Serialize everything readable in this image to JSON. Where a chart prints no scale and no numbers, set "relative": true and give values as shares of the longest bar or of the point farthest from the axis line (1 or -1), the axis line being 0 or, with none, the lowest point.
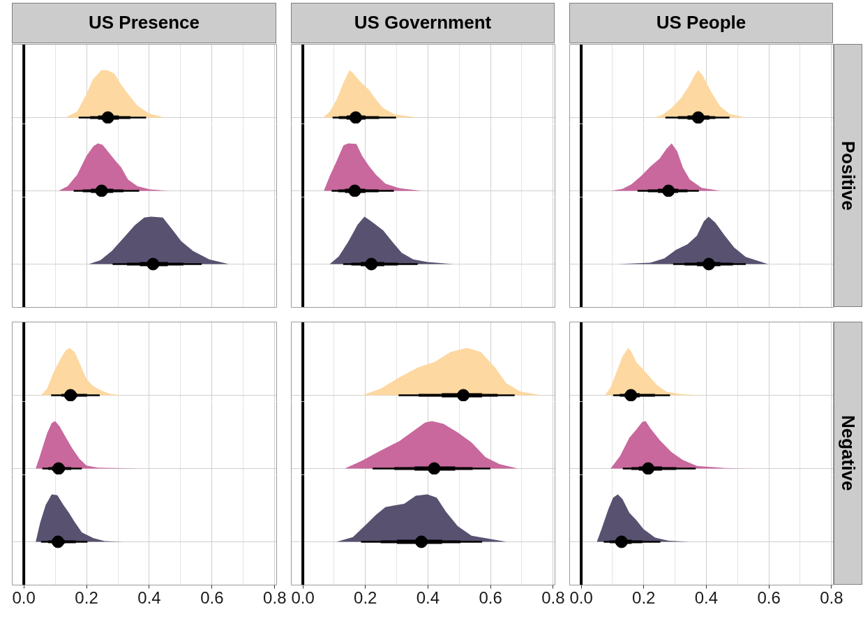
{
  "chart_data": [
    {
      "type": "area",
      "title": "US Presence",
      "relative": true,
      "xlim": [
        -0.037,
        0.806
      ],
      "xticks": [
        0,
        {
          "value": 0.1,
          "label": null
        },
        0.2,
        {
          "value": 0.3,
          "label": null
        },
        0.4,
        {
          "value": 0.5,
          "label": null
        },
        0.6,
        {
          "value": 0.7,
          "label": null
        },
        0.8
      ],
      "tick_labels": false,
      "grid": true,
      "ref_lines": [
        {
          "axis": "x",
          "value": 0,
          "color": "#000000"
        }
      ],
      "series": [
        {
          "color": "#fdd8a0",
          "x": [
            0.133,
            0.17,
            0.2,
            0.22,
            0.247,
            0.266,
            0.288,
            0.31,
            0.332,
            0.362,
            0.4,
            0.45
          ],
          "values": [
            0,
            0.13,
            0.5,
            0.8,
            1,
            1,
            0.93,
            0.7,
            0.5,
            0.25,
            0.083,
            0
          ]
        },
        {
          "type": "line",
          "color": "#000000",
          "x": [
            0.175,
            0.39
          ],
          "values": [
            0,
            0
          ]
        },
        {
          "type": "line",
          "color": "#000000",
          "x": [
            0.211,
            0.34
          ],
          "values": [
            0,
            0
          ]
        },
        {
          "type": "line",
          "color": "#000000",
          "x": [
            0.237,
            0.303
          ],
          "values": [
            0,
            0
          ]
        },
        {
          "type": "scatter",
          "marker": "circle",
          "color": "#000000",
          "x": [
            0.268
          ],
          "values": [
            0
          ]
        }
      ]
    },
    {
      "type": "area",
      "relative": true,
      "xlim": [
        -0.037,
        0.806
      ],
      "xticks": [
        0,
        {
          "value": 0.1,
          "label": null
        },
        0.2,
        {
          "value": 0.3,
          "label": null
        },
        0.4,
        {
          "value": 0.5,
          "label": null
        },
        0.6,
        {
          "value": 0.7,
          "label": null
        },
        0.8
      ],
      "tick_labels": false,
      "grid": true,
      "ref_lines": [
        {
          "axis": "x",
          "value": 0,
          "color": "#000000"
        }
      ],
      "series": [
        {
          "color": "#c8689c",
          "x": [
            0.111,
            0.14,
            0.17,
            0.2,
            0.222,
            0.236,
            0.251,
            0.273,
            0.295,
            0.31,
            0.332,
            0.362,
            0.4,
            0.46
          ],
          "values": [
            0,
            0.1,
            0.34,
            0.74,
            0.94,
            1,
            0.97,
            0.79,
            0.61,
            0.5,
            0.24,
            0.1,
            0.032,
            0
          ]
        },
        {
          "type": "line",
          "color": "#000000",
          "x": [
            0.159,
            0.368
          ],
          "values": [
            0,
            0
          ]
        },
        {
          "type": "line",
          "color": "#000000",
          "x": [
            0.188,
            0.318
          ],
          "values": [
            0,
            0
          ]
        },
        {
          "type": "line",
          "color": "#000000",
          "x": [
            0.214,
            0.285
          ],
          "values": [
            0,
            0
          ]
        },
        {
          "type": "scatter",
          "marker": "circle",
          "color": "#000000",
          "x": [
            0.248
          ],
          "values": [
            0
          ]
        }
      ]
    },
    {
      "type": "area",
      "relative": true,
      "xlim": [
        -0.037,
        0.806
      ],
      "xticks": [
        0,
        {
          "value": 0.1,
          "label": null
        },
        0.2,
        {
          "value": 0.3,
          "label": null
        },
        0.4,
        {
          "value": 0.5,
          "label": null
        },
        0.6,
        {
          "value": 0.7,
          "label": null
        },
        0.8
      ],
      "tick_labels": false,
      "grid": true,
      "ref_lines": [
        {
          "axis": "x",
          "value": 0,
          "color": "#000000"
        }
      ],
      "series": [
        {
          "color": "#585170",
          "x": [
            0.207,
            0.244,
            0.281,
            0.318,
            0.354,
            0.384,
            0.406,
            0.443,
            0.473,
            0.502,
            0.539,
            0.591,
            0.654
          ],
          "values": [
            0,
            0.082,
            0.28,
            0.55,
            0.82,
            0.98,
            1,
            0.98,
            0.73,
            0.48,
            0.28,
            0.1,
            0
          ]
        },
        {
          "type": "line",
          "color": "#000000",
          "x": [
            0.283,
            0.567
          ],
          "values": [
            0,
            0
          ]
        },
        {
          "type": "line",
          "color": "#000000",
          "x": [
            0.329,
            0.509
          ],
          "values": [
            0,
            0
          ]
        },
        {
          "type": "line",
          "color": "#000000",
          "x": [
            0.37,
            0.459
          ],
          "values": [
            0,
            0
          ]
        },
        {
          "type": "scatter",
          "marker": "circle",
          "color": "#000000",
          "x": [
            0.412
          ],
          "values": [
            0
          ]
        }
      ]
    },
    {
      "type": "area",
      "title": "US Government",
      "relative": true,
      "xlim": [
        -0.037,
        0.806
      ],
      "xticks": [
        0,
        {
          "value": 0.1,
          "label": null
        },
        0.2,
        {
          "value": 0.3,
          "label": null
        },
        0.4,
        {
          "value": 0.5,
          "label": null
        },
        0.6,
        {
          "value": 0.7,
          "label": null
        },
        0.8
      ],
      "tick_labels": false,
      "grid": true,
      "ref_lines": [
        {
          "axis": "x",
          "value": 0,
          "color": "#000000"
        }
      ],
      "series": [
        {
          "color": "#fdd8a0",
          "x": [
            0.065,
            0.086,
            0.108,
            0.13,
            0.149,
            0.16,
            0.182,
            0.212,
            0.234,
            0.257,
            0.294,
            0.368
          ],
          "values": [
            0,
            0.12,
            0.38,
            0.74,
            1,
            0.94,
            0.77,
            0.58,
            0.38,
            0.2,
            0.067,
            0
          ]
        },
        {
          "type": "line",
          "color": "#000000",
          "x": [
            0.095,
            0.298
          ],
          "values": [
            0,
            0
          ]
        },
        {
          "type": "line",
          "color": "#000000",
          "x": [
            0.115,
            0.244
          ],
          "values": [
            0,
            0
          ]
        },
        {
          "type": "line",
          "color": "#000000",
          "x": [
            0.14,
            0.2
          ],
          "values": [
            0,
            0
          ]
        },
        {
          "type": "scatter",
          "marker": "circle",
          "color": "#000000",
          "x": [
            0.169
          ],
          "values": [
            0
          ]
        }
      ]
    },
    {
      "type": "area",
      "relative": true,
      "xlim": [
        -0.037,
        0.806
      ],
      "xticks": [
        0,
        {
          "value": 0.1,
          "label": null
        },
        0.2,
        {
          "value": 0.3,
          "label": null
        },
        0.4,
        {
          "value": 0.5,
          "label": null
        },
        0.6,
        {
          "value": 0.7,
          "label": null
        },
        0.8
      ],
      "tick_labels": false,
      "grid": true,
      "ref_lines": [
        {
          "axis": "x",
          "value": 0,
          "color": "#000000"
        }
      ],
      "series": [
        {
          "color": "#c8689c",
          "x": [
            0.067,
            0.086,
            0.108,
            0.13,
            0.145,
            0.171,
            0.19,
            0.212,
            0.234,
            0.264,
            0.309,
            0.38
          ],
          "values": [
            0,
            0.31,
            0.63,
            0.96,
            1,
            0.99,
            0.73,
            0.52,
            0.34,
            0.15,
            0.054,
            0
          ]
        },
        {
          "type": "line",
          "color": "#000000",
          "x": [
            0.092,
            0.291
          ],
          "values": [
            0,
            0
          ]
        },
        {
          "type": "line",
          "color": "#000000",
          "x": [
            0.113,
            0.242
          ],
          "values": [
            0,
            0
          ]
        },
        {
          "type": "line",
          "color": "#000000",
          "x": [
            0.135,
            0.2
          ],
          "values": [
            0,
            0
          ]
        },
        {
          "type": "scatter",
          "marker": "circle",
          "color": "#000000",
          "x": [
            0.166
          ],
          "values": [
            0
          ]
        }
      ]
    },
    {
      "type": "area",
      "relative": true,
      "xlim": [
        -0.037,
        0.806
      ],
      "xticks": [
        0,
        {
          "value": 0.1,
          "label": null
        },
        0.2,
        {
          "value": 0.3,
          "label": null
        },
        0.4,
        {
          "value": 0.5,
          "label": null
        },
        0.6,
        {
          "value": 0.7,
          "label": null
        },
        0.8
      ],
      "tick_labels": false,
      "grid": true,
      "ref_lines": [
        {
          "axis": "x",
          "value": 0,
          "color": "#000000"
        }
      ],
      "series": [
        {
          "color": "#585170",
          "x": [
            0.086,
            0.115,
            0.145,
            0.175,
            0.197,
            0.219,
            0.257,
            0.286,
            0.316,
            0.353,
            0.398,
            0.48
          ],
          "values": [
            0,
            0.16,
            0.47,
            0.83,
            1,
            0.9,
            0.71,
            0.47,
            0.24,
            0.1,
            0.043,
            0
          ]
        },
        {
          "type": "line",
          "color": "#000000",
          "x": [
            0.129,
            0.367
          ],
          "values": [
            0,
            0
          ]
        },
        {
          "type": "line",
          "color": "#000000",
          "x": [
            0.155,
            0.304
          ],
          "values": [
            0,
            0
          ]
        },
        {
          "type": "line",
          "color": "#000000",
          "x": [
            0.185,
            0.26
          ],
          "values": [
            0,
            0
          ]
        },
        {
          "type": "scatter",
          "marker": "circle",
          "color": "#000000",
          "x": [
            0.219
          ],
          "values": [
            0
          ]
        }
      ]
    },
    {
      "type": "area",
      "title": "US People",
      "relative": true,
      "xlim": [
        -0.037,
        0.806
      ],
      "xticks": [
        0,
        {
          "value": 0.1,
          "label": null
        },
        0.2,
        {
          "value": 0.3,
          "label": null
        },
        0.4,
        {
          "value": 0.5,
          "label": null
        },
        0.6,
        {
          "value": 0.7,
          "label": null
        },
        0.8
      ],
      "tick_labels": false,
      "grid": true,
      "ref_lines": [
        {
          "axis": "x",
          "value": 0,
          "color": "#000000"
        }
      ],
      "series": [
        {
          "color": "#fdd8a0",
          "x": [
            0.232,
            0.258,
            0.288,
            0.318,
            0.344,
            0.362,
            0.374,
            0.388,
            0.414,
            0.444,
            0.474,
            0.526
          ],
          "values": [
            0,
            0.051,
            0.2,
            0.4,
            0.66,
            0.89,
            1,
            0.89,
            0.56,
            0.24,
            0.077,
            0
          ]
        },
        {
          "type": "line",
          "color": "#000000",
          "x": [
            0.269,
            0.474
          ],
          "values": [
            0,
            0
          ]
        },
        {
          "type": "line",
          "color": "#000000",
          "x": [
            0.309,
            0.429
          ],
          "values": [
            0,
            0
          ]
        },
        {
          "type": "line",
          "color": "#000000",
          "x": [
            0.34,
            0.41
          ],
          "values": [
            0,
            0
          ]
        },
        {
          "type": "scatter",
          "marker": "circle",
          "color": "#000000",
          "x": [
            0.374
          ],
          "values": [
            0
          ]
        }
      ]
    },
    {
      "type": "area",
      "y2label": "Positive",
      "relative": true,
      "xlim": [
        -0.037,
        0.806
      ],
      "xticks": [
        0,
        {
          "value": 0.1,
          "label": null
        },
        0.2,
        {
          "value": 0.3,
          "label": null
        },
        0.4,
        {
          "value": 0.5,
          "label": null
        },
        0.6,
        {
          "value": 0.7,
          "label": null
        },
        0.8
      ],
      "tick_labels": false,
      "grid": true,
      "ref_lines": [
        {
          "axis": "x",
          "value": 0,
          "color": "#000000"
        }
      ],
      "series": [
        {
          "color": "#c8689c",
          "x": [
            0.094,
            0.132,
            0.161,
            0.191,
            0.221,
            0.251,
            0.273,
            0.289,
            0.307,
            0.325,
            0.347,
            0.385,
            0.444
          ],
          "values": [
            0,
            0.042,
            0.14,
            0.31,
            0.51,
            0.68,
            0.89,
            1,
            0.83,
            0.49,
            0.24,
            0.064,
            0
          ]
        },
        {
          "type": "line",
          "color": "#000000",
          "x": [
            0.18,
            0.376
          ],
          "values": [
            0,
            0
          ]
        },
        {
          "type": "line",
          "color": "#000000",
          "x": [
            0.213,
            0.34
          ],
          "values": [
            0,
            0
          ]
        },
        {
          "type": "line",
          "color": "#000000",
          "x": [
            0.245,
            0.31
          ],
          "values": [
            0,
            0
          ]
        },
        {
          "type": "scatter",
          "marker": "circle",
          "color": "#000000",
          "x": [
            0.279
          ],
          "values": [
            0
          ]
        }
      ]
    },
    {
      "type": "area",
      "relative": true,
      "xlim": [
        -0.037,
        0.806
      ],
      "xticks": [
        0,
        {
          "value": 0.1,
          "label": null
        },
        0.2,
        {
          "value": 0.3,
          "label": null
        },
        0.4,
        {
          "value": 0.5,
          "label": null
        },
        0.6,
        {
          "value": 0.7,
          "label": null
        },
        0.8
      ],
      "tick_labels": false,
      "grid": true,
      "ref_lines": [
        {
          "axis": "x",
          "value": 0,
          "color": "#000000"
        }
      ],
      "series": [
        {
          "color": "#585170",
          "x": [
            0.117,
            0.221,
            0.266,
            0.303,
            0.34,
            0.37,
            0.392,
            0.407,
            0.429,
            0.459,
            0.489,
            0.526,
            0.597
          ],
          "values": [
            0,
            0.03,
            0.12,
            0.3,
            0.42,
            0.6,
            0.9,
            1,
            0.87,
            0.6,
            0.35,
            0.15,
            0
          ]
        },
        {
          "type": "line",
          "color": "#000000",
          "x": [
            0.294,
            0.526
          ],
          "values": [
            0,
            0
          ]
        },
        {
          "type": "line",
          "color": "#000000",
          "x": [
            0.33,
            0.485
          ],
          "values": [
            0,
            0
          ]
        },
        {
          "type": "line",
          "color": "#000000",
          "x": [
            0.37,
            0.445
          ],
          "values": [
            0,
            0
          ]
        },
        {
          "type": "scatter",
          "marker": "circle",
          "color": "#000000",
          "x": [
            0.408
          ],
          "values": [
            0
          ]
        }
      ]
    },
    {
      "type": "area",
      "relative": true,
      "xlim": [
        -0.037,
        0.806
      ],
      "xticks": [
        0,
        {
          "value": 0.1,
          "label": null
        },
        0.2,
        {
          "value": 0.3,
          "label": null
        },
        0.4,
        {
          "value": 0.5,
          "label": null
        },
        0.6,
        {
          "value": 0.7,
          "label": null
        },
        0.8
      ],
      "tick_labels": false,
      "grid": true,
      "ref_lines": [
        {
          "axis": "x",
          "value": 0,
          "color": "#000000"
        }
      ],
      "series": [
        {
          "color": "#fdd8a0",
          "x": [
            0.055,
            0.074,
            0.096,
            0.118,
            0.133,
            0.146,
            0.162,
            0.181,
            0.2,
            0.222,
            0.244,
            0.273,
            0.31
          ],
          "values": [
            0,
            0.14,
            0.5,
            0.78,
            0.94,
            1,
            0.91,
            0.63,
            0.34,
            0.19,
            0.11,
            0.034,
            0
          ]
        },
        {
          "type": "line",
          "color": "#000000",
          "x": [
            0.087,
            0.242
          ],
          "values": [
            0,
            0
          ]
        },
        {
          "type": "line",
          "color": "#000000",
          "x": [
            0.12,
            0.202
          ],
          "values": [
            0,
            0
          ]
        },
        {
          "type": "line",
          "color": "#000000",
          "x": [
            0.13,
            0.17
          ],
          "values": [
            0,
            0
          ]
        },
        {
          "type": "scatter",
          "marker": "circle",
          "color": "#000000",
          "x": [
            0.149
          ],
          "values": [
            0
          ]
        }
      ]
    },
    {
      "type": "area",
      "relative": true,
      "xlim": [
        -0.037,
        0.806
      ],
      "xticks": [
        0,
        {
          "value": 0.1,
          "label": null
        },
        0.2,
        {
          "value": 0.3,
          "label": null
        },
        0.4,
        {
          "value": 0.5,
          "label": null
        },
        0.6,
        {
          "value": 0.7,
          "label": null
        },
        0.8
      ],
      "tick_labels": false,
      "grid": true,
      "ref_lines": [
        {
          "axis": "x",
          "value": 0,
          "color": "#000000"
        }
      ],
      "series": [
        {
          "color": "#c8689c",
          "x": [
            0.038,
            0.052,
            0.074,
            0.089,
            0.1,
            0.114,
            0.133,
            0.155,
            0.177,
            0.2,
            0.236,
            0.369
          ],
          "values": [
            0,
            0.28,
            0.74,
            0.96,
            1,
            0.89,
            0.67,
            0.42,
            0.21,
            0.064,
            0.018,
            0
          ]
        },
        {
          "type": "line",
          "color": "#000000",
          "x": [
            0.059,
            0.185
          ],
          "values": [
            0,
            0
          ]
        },
        {
          "type": "line",
          "color": "#000000",
          "x": [
            0.078,
            0.151
          ],
          "values": [
            0,
            0
          ]
        },
        {
          "type": "line",
          "color": "#000000",
          "x": [
            0.09,
            0.13
          ],
          "values": [
            0,
            0
          ]
        },
        {
          "type": "scatter",
          "marker": "circle",
          "color": "#000000",
          "x": [
            0.111
          ],
          "values": [
            0
          ]
        }
      ]
    },
    {
      "type": "area",
      "relative": true,
      "xlim": [
        -0.037,
        0.806
      ],
      "xticks": [
        {
          "value": 0,
          "label": "0.0"
        },
        {
          "value": 0.1,
          "label": null
        },
        0.2,
        {
          "value": 0.3,
          "label": null
        },
        0.4,
        {
          "value": 0.5,
          "label": null
        },
        0.6,
        {
          "value": 0.7,
          "label": null
        },
        0.8
      ],
      "tick_labels": "x",
      "grid": true,
      "ref_lines": [
        {
          "axis": "x",
          "value": 0,
          "color": "#000000"
        }
      ],
      "series": [
        {
          "color": "#585170",
          "x": [
            0.038,
            0.052,
            0.07,
            0.089,
            0.107,
            0.126,
            0.144,
            0.162,
            0.185,
            0.222,
            0.258,
            0.318
          ],
          "values": [
            0,
            0.4,
            0.78,
            1,
            0.98,
            0.78,
            0.61,
            0.42,
            0.2,
            0.077,
            0.013,
            0
          ]
        },
        {
          "type": "line",
          "color": "#000000",
          "x": [
            0.055,
            0.203
          ],
          "values": [
            0,
            0
          ]
        },
        {
          "type": "line",
          "color": "#000000",
          "x": [
            0.078,
            0.166
          ],
          "values": [
            0,
            0
          ]
        },
        {
          "type": "line",
          "color": "#000000",
          "x": [
            0.09,
            0.13
          ],
          "values": [
            0,
            0
          ]
        },
        {
          "type": "scatter",
          "marker": "circle",
          "color": "#000000",
          "x": [
            0.109
          ],
          "values": [
            0
          ]
        }
      ]
    },
    {
      "type": "area",
      "relative": true,
      "xlim": [
        -0.037,
        0.806
      ],
      "xticks": [
        0,
        {
          "value": 0.1,
          "label": null
        },
        0.2,
        {
          "value": 0.3,
          "label": null
        },
        0.4,
        {
          "value": 0.5,
          "label": null
        },
        0.6,
        {
          "value": 0.7,
          "label": null
        },
        0.8
      ],
      "tick_labels": false,
      "grid": true,
      "ref_lines": [
        {
          "axis": "x",
          "value": 0,
          "color": "#000000"
        }
      ],
      "series": [
        {
          "color": "#fdd8a0",
          "x": [
            0.19,
            0.249,
            0.309,
            0.368,
            0.42,
            0.472,
            0.525,
            0.569,
            0.614,
            0.651,
            0.696,
            0.763
          ],
          "values": [
            0,
            0.14,
            0.38,
            0.59,
            0.7,
            0.91,
            1,
            0.91,
            0.59,
            0.25,
            0.078,
            0
          ]
        },
        {
          "type": "line",
          "color": "#000000",
          "x": [
            0.306,
            0.677
          ],
          "values": [
            0,
            0
          ]
        },
        {
          "type": "line",
          "color": "#000000",
          "x": [
            0.37,
            0.623
          ],
          "values": [
            0,
            0
          ]
        },
        {
          "type": "line",
          "color": "#000000",
          "x": [
            0.444,
            0.573
          ],
          "values": [
            0,
            0
          ]
        },
        {
          "type": "scatter",
          "marker": "circle",
          "color": "#000000",
          "x": [
            0.513
          ],
          "values": [
            0
          ]
        }
      ]
    },
    {
      "type": "area",
      "relative": true,
      "xlim": [
        -0.037,
        0.806
      ],
      "xticks": [
        0,
        {
          "value": 0.1,
          "label": null
        },
        0.2,
        {
          "value": 0.3,
          "label": null
        },
        0.4,
        {
          "value": 0.5,
          "label": null
        },
        0.6,
        {
          "value": 0.7,
          "label": null
        },
        0.8
      ],
      "tick_labels": false,
      "grid": true,
      "ref_lines": [
        {
          "axis": "x",
          "value": 0,
          "color": "#000000"
        }
      ],
      "series": [
        {
          "color": "#c8689c",
          "x": [
            0.134,
            0.19,
            0.249,
            0.309,
            0.353,
            0.391,
            0.413,
            0.45,
            0.495,
            0.539,
            0.584,
            0.629,
            0.688
          ],
          "values": [
            0,
            0.17,
            0.38,
            0.58,
            0.79,
            0.97,
            1,
            0.94,
            0.76,
            0.55,
            0.24,
            0.091,
            0
          ]
        },
        {
          "type": "line",
          "color": "#000000",
          "x": [
            0.223,
            0.599
          ],
          "values": [
            0,
            0
          ]
        },
        {
          "type": "line",
          "color": "#000000",
          "x": [
            0.292,
            0.543
          ],
          "values": [
            0,
            0
          ]
        },
        {
          "type": "line",
          "color": "#000000",
          "x": [
            0.357,
            0.487
          ],
          "values": [
            0,
            0
          ]
        },
        {
          "type": "scatter",
          "marker": "circle",
          "color": "#000000",
          "x": [
            0.42
          ],
          "values": [
            0
          ]
        }
      ]
    },
    {
      "type": "area",
      "relative": true,
      "xlim": [
        -0.037,
        0.806
      ],
      "xticks": [
        {
          "value": 0,
          "label": "0.0"
        },
        {
          "value": 0.1,
          "label": null
        },
        0.2,
        {
          "value": 0.3,
          "label": null
        },
        0.4,
        {
          "value": 0.5,
          "label": null
        },
        0.6,
        {
          "value": 0.7,
          "label": null
        },
        0.8
      ],
      "tick_labels": "x",
      "grid": true,
      "ref_lines": [
        {
          "axis": "x",
          "value": 0,
          "color": "#000000"
        }
      ],
      "series": [
        {
          "color": "#585170",
          "x": [
            0.108,
            0.16,
            0.197,
            0.234,
            0.264,
            0.294,
            0.324,
            0.361,
            0.398,
            0.428,
            0.458,
            0.495,
            0.539,
            0.651
          ],
          "values": [
            0,
            0.1,
            0.33,
            0.57,
            0.73,
            0.77,
            0.8,
            0.97,
            1,
            0.93,
            0.63,
            0.33,
            0.13,
            0
          ]
        },
        {
          "type": "line",
          "color": "#000000",
          "x": [
            0.186,
            0.573
          ],
          "values": [
            0,
            0
          ]
        },
        {
          "type": "line",
          "color": "#000000",
          "x": [
            0.249,
            0.504
          ],
          "values": [
            0,
            0
          ]
        },
        {
          "type": "line",
          "color": "#000000",
          "x": [
            0.301,
            0.445
          ],
          "values": [
            0,
            0
          ]
        },
        {
          "type": "scatter",
          "marker": "circle",
          "color": "#000000",
          "x": [
            0.379
          ],
          "values": [
            0
          ]
        }
      ]
    },
    {
      "type": "area",
      "relative": true,
      "xlim": [
        -0.037,
        0.806
      ],
      "xticks": [
        0,
        {
          "value": 0.1,
          "label": null
        },
        0.2,
        {
          "value": 0.3,
          "label": null
        },
        0.4,
        {
          "value": 0.5,
          "label": null
        },
        0.6,
        {
          "value": 0.7,
          "label": null
        },
        0.8
      ],
      "tick_labels": false,
      "grid": true,
      "ref_lines": [
        {
          "axis": "x",
          "value": 0,
          "color": "#000000"
        }
      ],
      "series": [
        {
          "color": "#fdd8a0",
          "x": [
            0.076,
            0.094,
            0.113,
            0.132,
            0.15,
            0.161,
            0.176,
            0.199,
            0.221,
            0.243,
            0.273,
            0.325,
            0.392
          ],
          "values": [
            0,
            0.17,
            0.49,
            0.82,
            1,
            0.91,
            0.7,
            0.54,
            0.37,
            0.21,
            0.072,
            0.02,
            0
          ]
        },
        {
          "type": "line",
          "color": "#000000",
          "x": [
            0.102,
            0.284
          ],
          "values": [
            0,
            0
          ]
        },
        {
          "type": "line",
          "color": "#000000",
          "x": [
            0.123,
            0.236
          ],
          "values": [
            0,
            0
          ]
        },
        {
          "type": "line",
          "color": "#000000",
          "x": [
            0.139,
            0.187
          ],
          "values": [
            0,
            0
          ]
        },
        {
          "type": "scatter",
          "marker": "circle",
          "color": "#000000",
          "x": [
            0.159
          ],
          "values": [
            0
          ]
        }
      ]
    },
    {
      "type": "area",
      "y2label": "Negative",
      "relative": true,
      "xlim": [
        -0.037,
        0.806
      ],
      "xticks": [
        0,
        {
          "value": 0.1,
          "label": null
        },
        0.2,
        {
          "value": 0.3,
          "label": null
        },
        0.4,
        {
          "value": 0.5,
          "label": null
        },
        0.6,
        {
          "value": 0.7,
          "label": null
        },
        0.8
      ],
      "tick_labels": false,
      "grid": true,
      "ref_lines": [
        {
          "axis": "x",
          "value": 0,
          "color": "#000000"
        }
      ],
      "series": [
        {
          "color": "#c8689c",
          "x": [
            0.094,
            0.124,
            0.154,
            0.176,
            0.195,
            0.206,
            0.221,
            0.251,
            0.288,
            0.325,
            0.37,
            0.459,
            0.533
          ],
          "values": [
            0,
            0.26,
            0.65,
            0.82,
            0.98,
            1,
            0.85,
            0.6,
            0.35,
            0.18,
            0.055,
            0.011,
            0
          ]
        },
        {
          "type": "line",
          "color": "#000000",
          "x": [
            0.133,
            0.366
          ],
          "values": [
            0,
            0
          ]
        },
        {
          "type": "line",
          "color": "#000000",
          "x": [
            0.16,
            0.304
          ],
          "values": [
            0,
            0
          ]
        },
        {
          "type": "line",
          "color": "#000000",
          "x": [
            0.184,
            0.258
          ],
          "values": [
            0,
            0
          ]
        },
        {
          "type": "scatter",
          "marker": "circle",
          "color": "#000000",
          "x": [
            0.214
          ],
          "values": [
            0
          ]
        }
      ]
    },
    {
      "type": "area",
      "relative": true,
      "xlim": [
        -0.037,
        0.806
      ],
      "xticks": [
        {
          "value": 0,
          "label": "0.0"
        },
        {
          "value": 0.1,
          "label": null
        },
        0.2,
        {
          "value": 0.3,
          "label": null
        },
        0.4,
        {
          "value": 0.5,
          "label": null
        },
        0.6,
        {
          "value": 0.7,
          "label": null
        },
        0.8
      ],
      "tick_labels": "x",
      "grid": true,
      "ref_lines": [
        {
          "axis": "x",
          "value": 0,
          "color": "#000000"
        }
      ],
      "series": [
        {
          "color": "#585170",
          "x": [
            0.05,
            0.065,
            0.087,
            0.102,
            0.117,
            0.132,
            0.154,
            0.176,
            0.199,
            0.236,
            0.28,
            0.347
          ],
          "values": [
            0,
            0.27,
            0.69,
            0.93,
            1,
            0.9,
            0.61,
            0.46,
            0.27,
            0.089,
            0.021,
            0
          ]
        },
        {
          "type": "line",
          "color": "#000000",
          "x": [
            0.072,
            0.253
          ],
          "values": [
            0,
            0
          ]
        },
        {
          "type": "line",
          "color": "#000000",
          "x": [
            0.091,
            0.195
          ],
          "values": [
            0,
            0
          ]
        },
        {
          "type": "line",
          "color": "#000000",
          "x": [
            0.109,
            0.161
          ],
          "values": [
            0,
            0
          ]
        },
        {
          "type": "scatter",
          "marker": "circle",
          "color": "#000000",
          "x": [
            0.129
          ],
          "values": [
            0
          ]
        }
      ]
    }
  ]
}
